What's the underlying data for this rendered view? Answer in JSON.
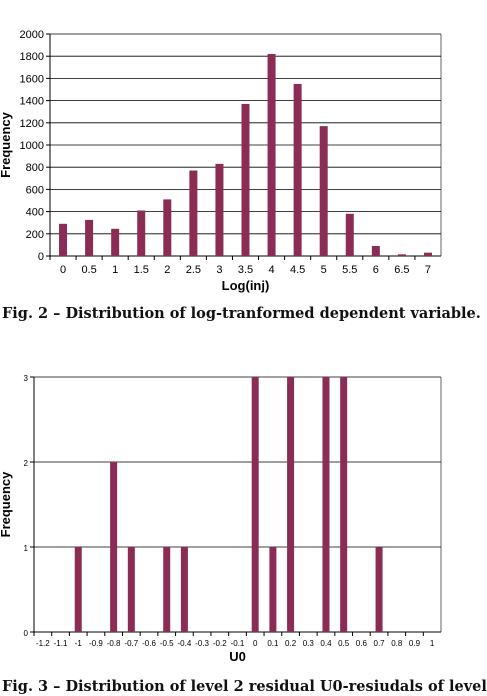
{
  "captions": {
    "fig2": "Fig. 2 – Distribution of log-tranformed dependent variable.",
    "fig3": "Fig. 3 – Distribution of level 2 residual U0-resiudals of level"
  },
  "colors": {
    "bar": "#8b2c55",
    "grid": "#000000",
    "axis": "#000000"
  },
  "chart_data": [
    {
      "type": "bar",
      "title": "",
      "xlabel": "Log(inj)",
      "ylabel": "Frequency",
      "ylim": [
        0,
        2000
      ],
      "yticks": [
        0,
        200,
        400,
        600,
        800,
        1000,
        1200,
        1400,
        1600,
        1800,
        2000
      ],
      "grid": true,
      "categories": [
        "0",
        "0.5",
        "1",
        "1.5",
        "2",
        "2.5",
        "3",
        "3.5",
        "4",
        "4.5",
        "5",
        "5.5",
        "6",
        "6.5",
        "7"
      ],
      "values": [
        290,
        325,
        245,
        410,
        510,
        770,
        830,
        1370,
        1820,
        1550,
        1170,
        380,
        90,
        15,
        30
      ]
    },
    {
      "type": "bar",
      "title": "",
      "xlabel": "U0",
      "ylabel": "Frequency",
      "ylim": [
        0,
        3
      ],
      "yticks": [
        0,
        1,
        2,
        3
      ],
      "grid": true,
      "categories": [
        "-1.2",
        "-1.1",
        "-1",
        "-0.9",
        "-0.8",
        "-0.7",
        "-0.6",
        "-0.5",
        "-0.4",
        "-0.3",
        "-0.2",
        "-0.1",
        "0",
        "0.1",
        "0.2",
        "0.3",
        "0.4",
        "0.5",
        "0.6",
        "0.7",
        "0.8",
        "0.9",
        "1"
      ],
      "values": [
        0,
        0,
        1,
        0,
        2,
        1,
        0,
        1,
        1,
        0,
        0,
        0,
        3,
        1,
        3,
        0,
        3,
        3,
        0,
        1,
        0,
        0,
        0
      ]
    }
  ]
}
